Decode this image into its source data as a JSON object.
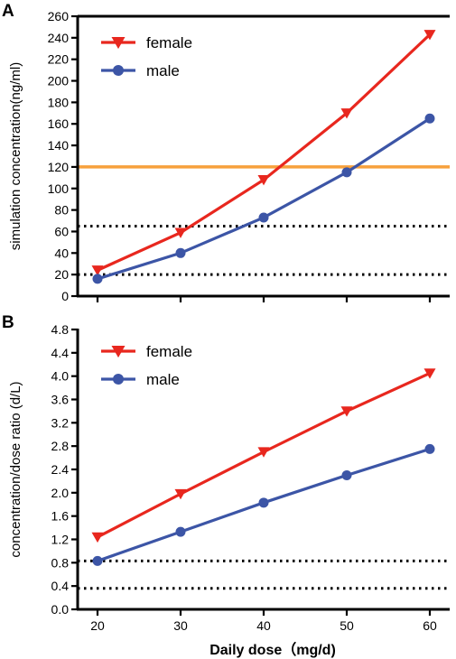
{
  "chart_data": [
    {
      "panel": "A",
      "type": "line",
      "ylabel": "simulation concentration(ng/ml)",
      "xlabel": "",
      "x": [
        20,
        30,
        40,
        50,
        60
      ],
      "xlim": [
        20,
        60
      ],
      "ylim": [
        0,
        260
      ],
      "yticks": [
        0,
        20,
        40,
        60,
        80,
        100,
        120,
        140,
        160,
        180,
        200,
        220,
        240,
        260
      ],
      "xticks": [
        20,
        30,
        40,
        50,
        60
      ],
      "grid": false,
      "legend": "top-left",
      "series": [
        {
          "name": "female",
          "marker": "triangle-down",
          "color": "#e8271e",
          "values": [
            24,
            59,
            108,
            170,
            243
          ]
        },
        {
          "name": "male",
          "marker": "circle",
          "color": "#3c55a6",
          "values": [
            16,
            40,
            73,
            115,
            165
          ]
        }
      ],
      "reference_lines": [
        {
          "y": 120,
          "style": "solid",
          "color": "#f7a13c"
        },
        {
          "y": 65,
          "style": "dotted",
          "color": "#000000"
        },
        {
          "y": 20,
          "style": "dotted",
          "color": "#000000"
        }
      ]
    },
    {
      "panel": "B",
      "type": "line",
      "ylabel": "concentration/dose ratio (d/L)",
      "xlabel": "Daily dose（mg/d)",
      "x": [
        20,
        30,
        40,
        50,
        60
      ],
      "xlim": [
        20,
        60
      ],
      "ylim": [
        0,
        4.8
      ],
      "yticks": [
        "0.0",
        "0.4",
        "0.8",
        "1.2",
        "1.6",
        "2.0",
        "2.4",
        "2.8",
        "3.2",
        "3.6",
        "4.0",
        "4.4",
        "4.8"
      ],
      "xticks": [
        20,
        30,
        40,
        50,
        60
      ],
      "grid": false,
      "legend": "top-left",
      "series": [
        {
          "name": "female",
          "marker": "triangle-down",
          "color": "#e8271e",
          "values": [
            1.24,
            1.98,
            2.7,
            3.4,
            4.05
          ]
        },
        {
          "name": "male",
          "marker": "circle",
          "color": "#3c55a6",
          "values": [
            0.83,
            1.33,
            1.83,
            2.3,
            2.75
          ]
        }
      ],
      "reference_lines": [
        {
          "y": 0.83,
          "style": "dotted",
          "color": "#000000"
        },
        {
          "y": 0.36,
          "style": "dotted",
          "color": "#000000"
        }
      ]
    }
  ]
}
